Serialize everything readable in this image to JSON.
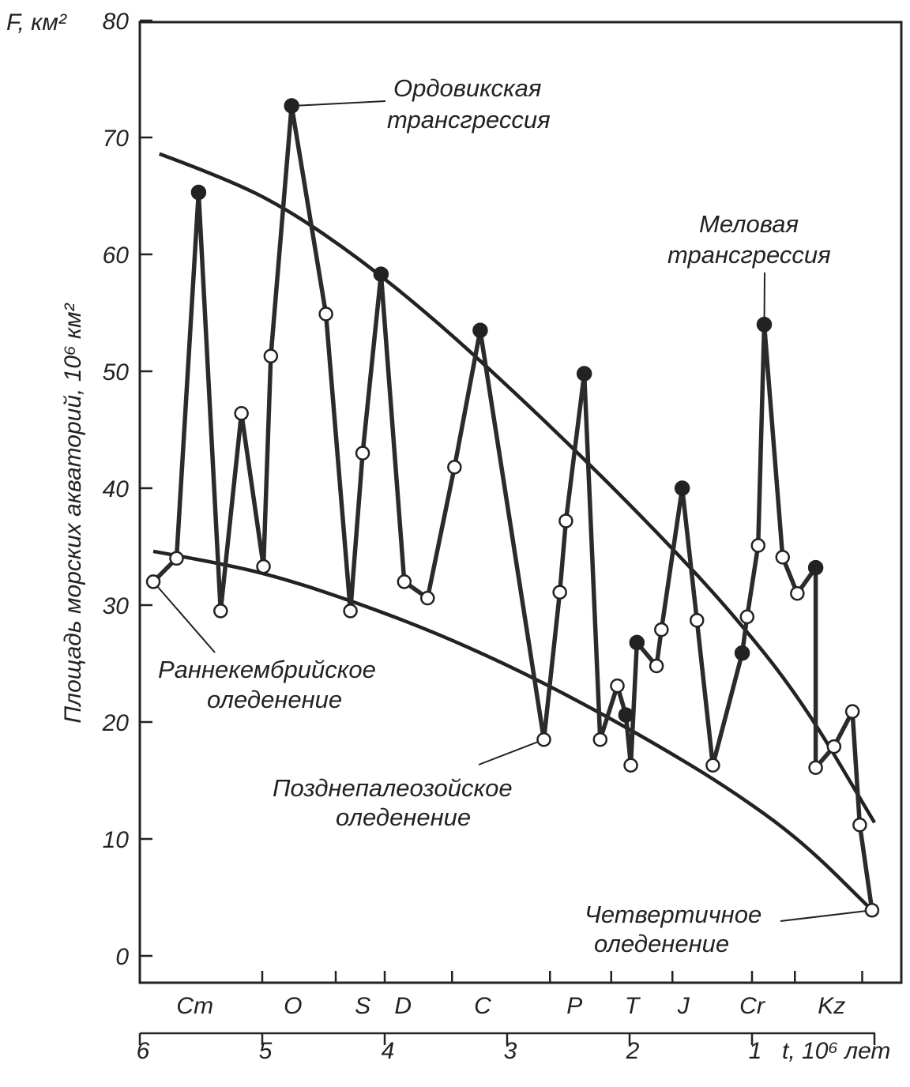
{
  "chart_data": {
    "type": "line",
    "title": "",
    "y_axis": {
      "label": "Площадь морских акваторий, 10⁶ км²",
      "corner_label": "F, км²",
      "range": [
        -2,
        80
      ],
      "ticks": [
        0,
        10,
        20,
        30,
        40,
        50,
        60,
        70,
        80
      ]
    },
    "x_axis": {
      "unit_label": "t, 10⁶ лет",
      "ticks": [
        {
          "value": 6,
          "label": "6"
        },
        {
          "value": 5,
          "label": "5"
        },
        {
          "value": 4,
          "label": "4"
        },
        {
          "value": 3,
          "label": "3"
        },
        {
          "value": 2,
          "label": "2"
        },
        {
          "value": 1,
          "label": "1"
        },
        {
          "value": 0,
          "label": ""
        }
      ]
    },
    "periods": [
      {
        "label": "Cm",
        "x": 5.55
      },
      {
        "label": "O",
        "x": 4.75
      },
      {
        "label": "S",
        "x": 4.18
      },
      {
        "label": "D",
        "x": 3.85
      },
      {
        "label": "C",
        "x": 3.2
      },
      {
        "label": "P",
        "x": 2.45
      },
      {
        "label": "T",
        "x": 1.98
      },
      {
        "label": "J",
        "x": 1.56
      },
      {
        "label": "Cr",
        "x": 1.0
      },
      {
        "label": "Kz",
        "x": 0.35
      }
    ],
    "period_boundaries": [
      5.0,
      4.4,
      4.0,
      3.45,
      2.65,
      2.15,
      1.65,
      1.0,
      0.65,
      0.1
    ],
    "series": [
      {
        "points": [
          {
            "x": 5.89,
            "y": 32.0,
            "filled": false
          },
          {
            "x": 5.7,
            "y": 34.0,
            "filled": false
          },
          {
            "x": 5.52,
            "y": 65.3,
            "filled": true
          },
          {
            "x": 5.34,
            "y": 29.5,
            "filled": false
          },
          {
            "x": 5.17,
            "y": 46.4,
            "filled": false
          },
          {
            "x": 4.99,
            "y": 33.3,
            "filled": false
          },
          {
            "x": 4.93,
            "y": 51.3,
            "filled": false
          },
          {
            "x": 4.76,
            "y": 72.7,
            "filled": true
          },
          {
            "x": 4.48,
            "y": 54.9,
            "filled": false
          },
          {
            "x": 4.28,
            "y": 29.5,
            "filled": false
          },
          {
            "x": 4.18,
            "y": 43.0,
            "filled": false
          },
          {
            "x": 4.03,
            "y": 58.3,
            "filled": true
          },
          {
            "x": 3.84,
            "y": 32.0,
            "filled": false
          },
          {
            "x": 3.65,
            "y": 30.6,
            "filled": false
          },
          {
            "x": 3.43,
            "y": 41.8,
            "filled": false
          },
          {
            "x": 3.22,
            "y": 53.5,
            "filled": true
          },
          {
            "x": 2.7,
            "y": 18.5,
            "filled": false
          },
          {
            "x": 2.57,
            "y": 31.1,
            "filled": false
          },
          {
            "x": 2.52,
            "y": 37.2,
            "filled": false
          },
          {
            "x": 2.37,
            "y": 49.8,
            "filled": true
          },
          {
            "x": 2.24,
            "y": 18.5,
            "filled": false
          },
          {
            "x": 2.1,
            "y": 23.1,
            "filled": false
          },
          {
            "x": 2.03,
            "y": 20.6,
            "filled": true
          },
          {
            "x": 1.99,
            "y": 16.3,
            "filled": false
          },
          {
            "x": 1.94,
            "y": 26.8,
            "filled": true
          },
          {
            "x": 1.78,
            "y": 24.8,
            "filled": false
          },
          {
            "x": 1.74,
            "y": 27.9,
            "filled": false
          },
          {
            "x": 1.57,
            "y": 40.0,
            "filled": true
          },
          {
            "x": 1.45,
            "y": 28.7,
            "filled": false
          },
          {
            "x": 1.32,
            "y": 16.3,
            "filled": false
          },
          {
            "x": 1.08,
            "y": 25.9,
            "filled": true
          },
          {
            "x": 1.04,
            "y": 29.0,
            "filled": false
          },
          {
            "x": 0.95,
            "y": 35.1,
            "filled": false
          },
          {
            "x": 0.9,
            "y": 54.0,
            "filled": true
          },
          {
            "x": 0.75,
            "y": 34.1,
            "filled": false
          },
          {
            "x": 0.63,
            "y": 31.0,
            "filled": false
          },
          {
            "x": 0.48,
            "y": 33.2,
            "filled": true
          },
          {
            "x": 0.48,
            "y": 16.1,
            "filled": false
          },
          {
            "x": 0.33,
            "y": 17.9,
            "filled": false
          },
          {
            "x": 0.18,
            "y": 20.9,
            "filled": false
          },
          {
            "x": 0.12,
            "y": 11.2,
            "filled": false
          },
          {
            "x": 0.02,
            "y": 3.9,
            "filled": false
          }
        ]
      }
    ],
    "envelopes": [
      {
        "id": "upper",
        "points": [
          [
            5.84,
            68.6
          ],
          [
            5.3,
            66.5
          ],
          [
            4.8,
            63.9
          ],
          [
            4.2,
            59.6
          ],
          [
            3.6,
            54.5
          ],
          [
            3.0,
            48.8
          ],
          [
            2.4,
            42.8
          ],
          [
            1.8,
            36.5
          ],
          [
            1.2,
            29.8
          ],
          [
            0.6,
            22.0
          ],
          [
            0.0,
            11.4
          ]
        ]
      },
      {
        "id": "lower",
        "points": [
          [
            5.89,
            34.6
          ],
          [
            5.3,
            33.5
          ],
          [
            4.8,
            32.2
          ],
          [
            4.2,
            30.1
          ],
          [
            3.6,
            27.7
          ],
          [
            3.0,
            24.9
          ],
          [
            2.4,
            21.7
          ],
          [
            1.8,
            18.2
          ],
          [
            1.2,
            14.4
          ],
          [
            0.6,
            9.9
          ],
          [
            0.02,
            3.9
          ]
        ]
      }
    ],
    "annotations": [
      {
        "id": "ordovician",
        "lines": [
          "Ордовикская",
          "трансгрессия"
        ]
      },
      {
        "id": "cretaceous",
        "lines": [
          "Меловая",
          "трансгрессия"
        ]
      },
      {
        "id": "early-cambrian",
        "lines": [
          "Раннекембрийское",
          "оледенение"
        ]
      },
      {
        "id": "late-paleozoic",
        "lines": [
          "Позднепалеозойское",
          "оледенение"
        ]
      },
      {
        "id": "quaternary",
        "lines": [
          "Четвертичное",
          "оледенение"
        ]
      }
    ],
    "grid": false,
    "legend": "none"
  }
}
